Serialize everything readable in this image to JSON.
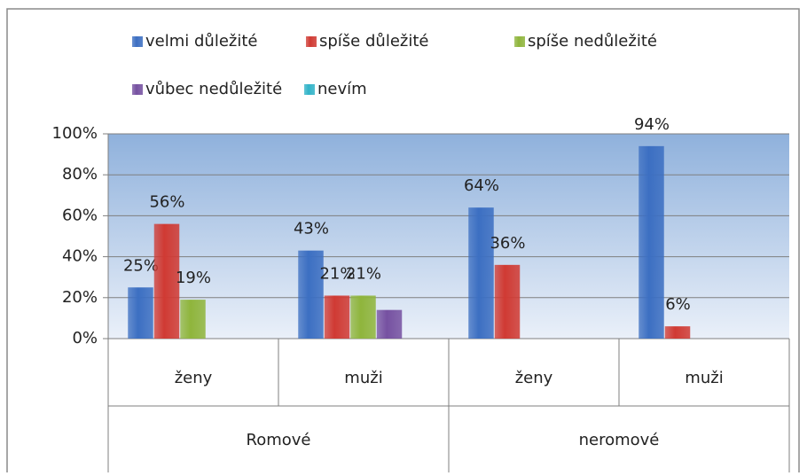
{
  "chart_data": {
    "type": "bar",
    "groups": [
      {
        "name": "Romové",
        "categories": [
          "ženy",
          "muži"
        ]
      },
      {
        "name": "neromové",
        "categories": [
          "ženy",
          "muži"
        ]
      }
    ],
    "series": [
      {
        "name": "velmi důležité",
        "color": "#3c6fc2",
        "values": [
          25,
          43,
          64,
          94
        ],
        "value_labels": [
          "25%",
          "43%",
          "64%",
          "94%"
        ]
      },
      {
        "name": "spíše důležité",
        "color": "#d03a33",
        "values": [
          56,
          21,
          36,
          6
        ],
        "value_labels": [
          "56%",
          "21%",
          "36%",
          "6%"
        ]
      },
      {
        "name": "spíše nedůležité",
        "color": "#8fb53c",
        "values": [
          19,
          21,
          null,
          null
        ],
        "value_labels": [
          "19%",
          "21%",
          null,
          null
        ]
      },
      {
        "name": "vůbec nedůležité",
        "color": "#7651a1",
        "values": [
          null,
          14,
          null,
          null
        ],
        "value_labels": [
          null,
          null,
          null,
          null
        ]
      },
      {
        "name": "nevím",
        "color": "#31b3c8",
        "values": [
          null,
          null,
          null,
          null
        ],
        "value_labels": [
          null,
          null,
          null,
          null
        ]
      }
    ],
    "ylim": [
      0,
      100
    ],
    "yticks": [
      {
        "value": 0,
        "label": "0%"
      },
      {
        "value": 20,
        "label": "20%"
      },
      {
        "value": 40,
        "label": "40%"
      },
      {
        "value": 60,
        "label": "60%"
      },
      {
        "value": 80,
        "label": "80%"
      },
      {
        "value": 100,
        "label": "100%"
      }
    ],
    "grid": true,
    "legend": "top"
  }
}
